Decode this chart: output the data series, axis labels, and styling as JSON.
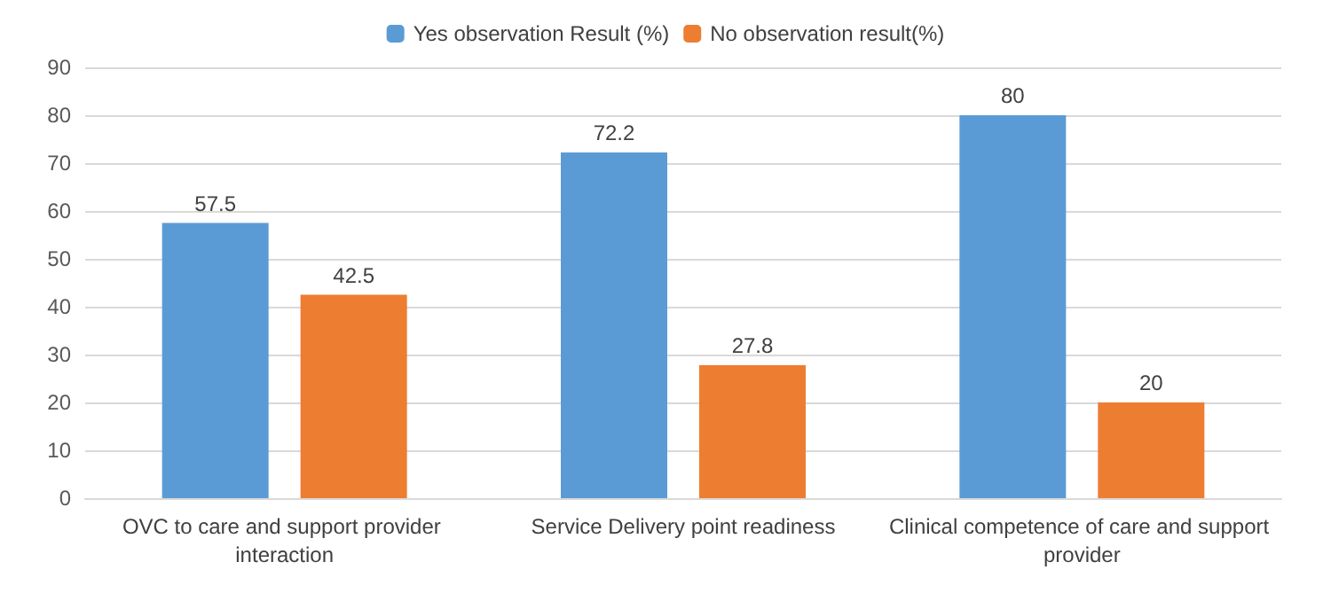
{
  "chart_data": {
    "type": "bar",
    "categories": [
      "OVC to care and support provider interaction",
      "Service Delivery point readiness",
      "Clinical competence of care and support provider"
    ],
    "series": [
      {
        "name": "Yes observation Result (%)",
        "color": "#5b9bd5",
        "values": [
          57.5,
          72.2,
          80
        ]
      },
      {
        "name": "No observation result(%)",
        "color": "#ed7d31",
        "values": [
          42.5,
          27.8,
          20
        ]
      }
    ],
    "ylim": [
      0,
      90
    ],
    "yticks": [
      0,
      10,
      20,
      30,
      40,
      50,
      60,
      70,
      80,
      90
    ],
    "grid": "y",
    "legend": "top",
    "data_labels": true
  }
}
